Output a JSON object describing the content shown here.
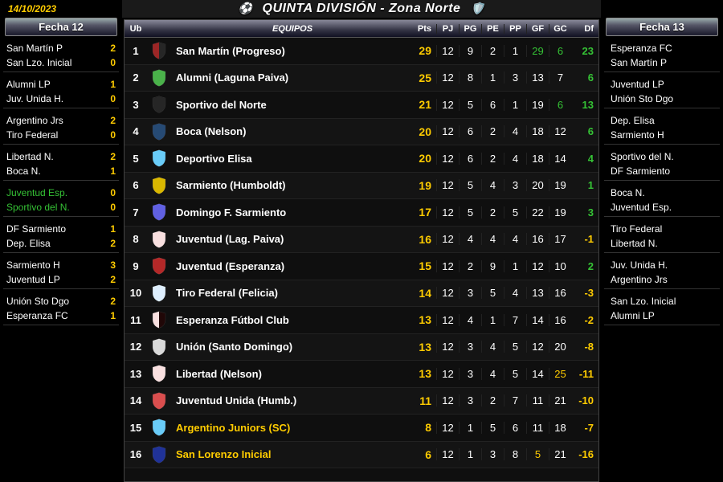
{
  "date": "14/10/2023",
  "title": "QUINTA DIVISIÓN - Zona Norte",
  "left": {
    "header": "Fecha 12",
    "matches": [
      {
        "home": "San Martín P",
        "hs": "2",
        "away": "San Lzo. Inicial",
        "as": "0"
      },
      {
        "home": "Alumni LP",
        "hs": "1",
        "away": "Juv. Unida H.",
        "as": "0"
      },
      {
        "home": "Argentino Jrs",
        "hs": "2",
        "away": "Tiro Federal",
        "as": "0"
      },
      {
        "home": "Libertad N.",
        "hs": "2",
        "away": "Boca N.",
        "as": "1"
      },
      {
        "home": "Juventud Esp.",
        "hs": "0",
        "away": "Sportivo del N.",
        "as": "0",
        "green": true
      },
      {
        "home": "DF Sarmiento",
        "hs": "1",
        "away": "Dep. Elisa",
        "as": "2"
      },
      {
        "home": "Sarmiento H",
        "hs": "3",
        "away": "Juventud LP",
        "as": "2"
      },
      {
        "home": "Unión Sto Dgo",
        "hs": "2",
        "away": "Esperanza FC",
        "as": "1"
      }
    ]
  },
  "right": {
    "header": "Fecha 13",
    "matches": [
      {
        "home": "Esperanza FC",
        "away": "San Martín P"
      },
      {
        "home": "Juventud LP",
        "away": "Unión Sto Dgo"
      },
      {
        "home": "Dep. Elisa",
        "away": "Sarmiento H"
      },
      {
        "home": "Sportivo del N.",
        "away": "DF Sarmiento"
      },
      {
        "home": "Boca N.",
        "away": "Juventud Esp."
      },
      {
        "home": "Tiro Federal",
        "away": "Libertad N."
      },
      {
        "home": "Juv. Unida H.",
        "away": "Argentino Jrs"
      },
      {
        "home": "San Lzo. Inicial",
        "away": "Alumni LP"
      }
    ]
  },
  "table": {
    "headers": {
      "ub": "Ub",
      "equipos": "EQUIPOS",
      "pts": "Pts",
      "pj": "PJ",
      "pg": "PG",
      "pe": "PE",
      "pp": "PP",
      "gf": "GF",
      "gc": "GC",
      "df": "Df"
    },
    "rows": [
      {
        "ub": 1,
        "shield": {
          "colors": [
            "#8B0000",
            "#ffffff",
            "#000000"
          ]
        },
        "name": "San Martín (Progreso)",
        "pts": 29,
        "pj": 12,
        "pg": 9,
        "pe": 2,
        "pp": 1,
        "gf": 29,
        "gc": 6,
        "df": 23,
        "gfc": "green",
        "gcc": "green",
        "dfc": "green"
      },
      {
        "ub": 2,
        "shield": {
          "colors": [
            "#2aa52a",
            "#ffffff",
            "#2aa52a"
          ]
        },
        "name": "Alumni (Laguna Paiva)",
        "pts": 25,
        "pj": 12,
        "pg": 8,
        "pe": 1,
        "pp": 3,
        "gf": 13,
        "gc": 7,
        "df": 6,
        "dfc": "green"
      },
      {
        "ub": 3,
        "shield": {
          "colors": [
            "#000000",
            "#ffffff",
            "#000000"
          ]
        },
        "name": "Sportivo del Norte",
        "pts": 21,
        "pj": 12,
        "pg": 5,
        "pe": 6,
        "pp": 1,
        "gf": 19,
        "gc": 6,
        "df": 13,
        "gcc": "green",
        "dfc": "green"
      },
      {
        "ub": 4,
        "shield": {
          "colors": [
            "#003388",
            "#ffcc00",
            "#003388"
          ]
        },
        "name": "Boca (Nelson)",
        "pts": 20,
        "pj": 12,
        "pg": 6,
        "pe": 2,
        "pp": 4,
        "gf": 18,
        "gc": 12,
        "df": 6,
        "dfc": "green"
      },
      {
        "ub": 5,
        "shield": {
          "colors": [
            "#4fc3f7",
            "#ffffff",
            "#4fc3f7"
          ]
        },
        "name": "Deportivo Elisa",
        "pts": 20,
        "pj": 12,
        "pg": 6,
        "pe": 2,
        "pp": 4,
        "gf": 18,
        "gc": 14,
        "df": 4,
        "dfc": "green"
      },
      {
        "ub": 6,
        "shield": {
          "colors": [
            "#ffd700",
            "#000000",
            "#ffd700"
          ]
        },
        "name": "Sarmiento (Humboldt)",
        "pts": 19,
        "pj": 12,
        "pg": 5,
        "pe": 4,
        "pp": 3,
        "gf": 20,
        "gc": 19,
        "df": 1,
        "dfc": "green"
      },
      {
        "ub": 7,
        "shield": {
          "colors": [
            "#4444dd",
            "#ffffff",
            "#4444dd"
          ]
        },
        "name": "Domingo F. Sarmiento",
        "pts": 17,
        "pj": 12,
        "pg": 5,
        "pe": 2,
        "pp": 5,
        "gf": 22,
        "gc": 19,
        "df": 3,
        "dfc": "green"
      },
      {
        "ub": 8,
        "shield": {
          "colors": [
            "#ffffff",
            "#d32f2f",
            "#ffffff"
          ]
        },
        "name": "Juventud (Lag. Paiva)",
        "pts": 16,
        "pj": 12,
        "pg": 4,
        "pe": 4,
        "pp": 4,
        "gf": 16,
        "gc": 17,
        "df": -1,
        "dfc": "yellow"
      },
      {
        "ub": 9,
        "shield": {
          "colors": [
            "#d32f2f",
            "#000000",
            "#d32f2f"
          ]
        },
        "name": "Juventud (Esperanza)",
        "pts": 15,
        "pj": 12,
        "pg": 2,
        "pe": 9,
        "pp": 1,
        "gf": 12,
        "gc": 10,
        "df": 2,
        "dfc": "green"
      },
      {
        "ub": 10,
        "shield": {
          "colors": [
            "#ffffff",
            "#2196f3",
            "#ffffff"
          ]
        },
        "name": "Tiro Federal (Felicia)",
        "pts": 14,
        "pj": 12,
        "pg": 3,
        "pe": 5,
        "pp": 4,
        "gf": 13,
        "gc": 16,
        "df": -3,
        "dfc": "yellow"
      },
      {
        "ub": 11,
        "shield": {
          "colors": [
            "#ffffff",
            "#d32f2f",
            "#000000"
          ]
        },
        "name": "Esperanza Fútbol Club",
        "pts": 13,
        "pj": 12,
        "pg": 4,
        "pe": 1,
        "pp": 7,
        "gf": 14,
        "gc": 16,
        "df": -2,
        "dfc": "yellow"
      },
      {
        "ub": 12,
        "shield": {
          "colors": [
            "#ffffff",
            "#000000",
            "#ffffff"
          ]
        },
        "name": "Unión (Santo Domingo)",
        "pts": 13,
        "pj": 12,
        "pg": 3,
        "pe": 4,
        "pp": 5,
        "gf": 12,
        "gc": 20,
        "df": -8,
        "dfc": "yellow"
      },
      {
        "ub": 13,
        "shield": {
          "colors": [
            "#ffffff",
            "#d32f2f",
            "#ffffff"
          ]
        },
        "name": "Libertad (Nelson)",
        "pts": 13,
        "pj": 12,
        "pg": 3,
        "pe": 4,
        "pp": 5,
        "gf": 14,
        "gc": 25,
        "df": -11,
        "gcc": "yellow",
        "dfc": "yellow"
      },
      {
        "ub": 14,
        "shield": {
          "colors": [
            "#d32f2f",
            "#ffffff",
            "#d32f2f"
          ]
        },
        "name": "Juventud Unida (Humb.)",
        "pts": 11,
        "pj": 12,
        "pg": 3,
        "pe": 2,
        "pp": 7,
        "gf": 11,
        "gc": 21,
        "df": -10,
        "dfc": "yellow"
      },
      {
        "ub": 15,
        "shield": {
          "colors": [
            "#4fc3f7",
            "#ffffff",
            "#4fc3f7"
          ]
        },
        "name": "Argentino Juniors (SC)",
        "pts": 8,
        "pj": 12,
        "pg": 1,
        "pe": 5,
        "pp": 6,
        "gf": 11,
        "gc": 18,
        "df": -7,
        "nameyellow": true,
        "dfc": "yellow"
      },
      {
        "ub": 16,
        "shield": {
          "colors": [
            "#0033aa",
            "#d32f2f",
            "#0033aa"
          ]
        },
        "name": "San Lorenzo Inicial",
        "pts": 6,
        "pj": 12,
        "pg": 1,
        "pe": 3,
        "pp": 8,
        "gf": 5,
        "gc": 21,
        "df": -16,
        "nameyellow": true,
        "gfc": "yellow",
        "dfc": "yellow"
      }
    ]
  },
  "colors": {
    "green": "#35c235",
    "yellow": "#ffcc00",
    "background": "#000000"
  }
}
